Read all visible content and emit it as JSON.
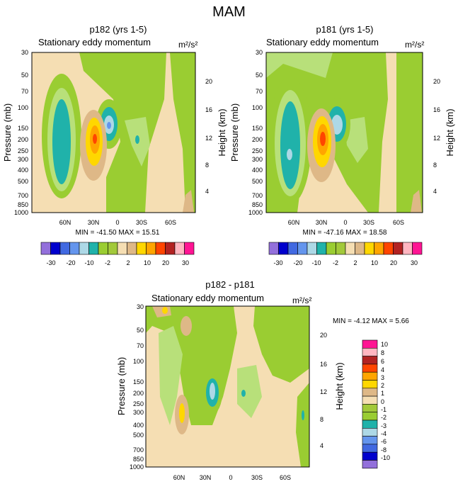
{
  "figure": {
    "title": "MAM"
  },
  "colors": {
    "pal1": [
      "#9370db",
      "#0000cd",
      "#4169e1",
      "#6495ed",
      "#add8e6",
      "#20b2aa",
      "#9acd32",
      "#a2c93a",
      "#f5deb3",
      "#deb887",
      "#ffd700",
      "#ffa500",
      "#ff4500",
      "#b22222",
      "#ffb6c1",
      "#ff1493"
    ],
    "pal2": [
      "#9370db",
      "#0000cd",
      "#4169e1",
      "#6495ed",
      "#add8e6",
      "#20b2aa",
      "#9acd32",
      "#a2c93a",
      "#f5deb3",
      "#deb887",
      "#ffd700",
      "#ffa500",
      "#ff4500",
      "#b22222",
      "#ffb6c1",
      "#ff1493"
    ]
  },
  "chart_data": [
    {
      "type": "heatmap",
      "title": "p182 (yrs 1-5)",
      "subtitle_left": "Stationary eddy momentum",
      "units": "m²/s²",
      "ylabel": "Pressure (mb)",
      "ylabel_right": "Height (km)",
      "y_ticks": [
        "30",
        "50",
        "70",
        "100",
        "150",
        "200",
        "250",
        "300",
        "400",
        "500",
        "700",
        "850",
        "1000"
      ],
      "y_right_ticks": [
        "20",
        "16",
        "12",
        "8",
        "4"
      ],
      "x_ticks": [
        "60N",
        "30N",
        "0",
        "30S",
        "60S"
      ],
      "stats": "MIN = -41.50  MAX =  15.51",
      "min": -41.5,
      "max": 15.51,
      "colorbar_labels": [
        "-30",
        "-20",
        "-10",
        "-2",
        "2",
        "10",
        "20",
        "30"
      ]
    },
    {
      "type": "heatmap",
      "title": "p181 (yrs 1-5)",
      "subtitle_left": "Stationary eddy momentum",
      "units": "m²/s²",
      "ylabel": "Pressure (mb)",
      "ylabel_right": "Height (km)",
      "y_ticks": [
        "30",
        "50",
        "70",
        "100",
        "150",
        "200",
        "250",
        "300",
        "400",
        "500",
        "700",
        "850",
        "1000"
      ],
      "y_right_ticks": [
        "20",
        "16",
        "12",
        "8",
        "4"
      ],
      "x_ticks": [
        "60N",
        "30N",
        "0",
        "30S",
        "60S"
      ],
      "stats": "MIN = -47.16  MAX =  18.58",
      "min": -47.16,
      "max": 18.58,
      "colorbar_labels": [
        "-30",
        "-20",
        "-10",
        "-2",
        "2",
        "10",
        "20",
        "30"
      ]
    },
    {
      "type": "heatmap",
      "title": "p182 - p181",
      "subtitle_left": "Stationary eddy momentum",
      "units": "m²/s²",
      "ylabel": "Pressure (mb)",
      "ylabel_right": "Height (km)",
      "y_ticks": [
        "30",
        "50",
        "70",
        "100",
        "150",
        "200",
        "250",
        "300",
        "400",
        "500",
        "700",
        "850",
        "1000"
      ],
      "y_right_ticks": [
        "20",
        "16",
        "12",
        "8",
        "4"
      ],
      "x_ticks": [
        "60N",
        "30N",
        "0",
        "30S",
        "60S"
      ],
      "stats": "MIN =  -4.12  MAX =   5.66",
      "min": -4.12,
      "max": 5.66,
      "colorbar_labels": [
        "10",
        "8",
        "6",
        "4",
        "3",
        "2",
        "1",
        "0",
        "-1",
        "-2",
        "-3",
        "-4",
        "-6",
        "-8",
        "-10"
      ]
    }
  ]
}
